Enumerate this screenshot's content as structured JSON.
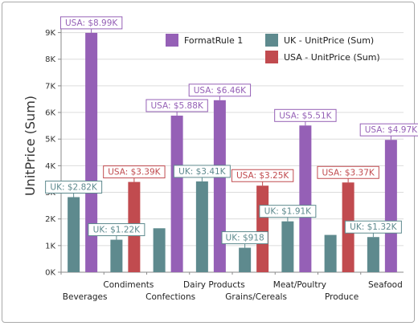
{
  "colors": {
    "uk": "#5e8a8e",
    "usa": "#c14b4f",
    "format_rule": "#9560b6",
    "grid": "#dcdcdc",
    "axis": "#8a8a8a"
  },
  "chart_data": {
    "type": "bar",
    "title": "",
    "xlabel": "",
    "ylabel": "UnitPrice (Sum)",
    "ylim": [
      0,
      9500
    ],
    "yticks": [
      0,
      1000,
      2000,
      3000,
      4000,
      5000,
      6000,
      7000,
      8000,
      9000
    ],
    "ytick_labels": [
      "0K",
      "1K",
      "2K",
      "3K",
      "4K",
      "5K",
      "6K",
      "7K",
      "8K",
      "9K"
    ],
    "grid": true,
    "legend_position": "top-right",
    "categories": [
      "Beverages",
      "Condiments",
      "Confections",
      "Dairy Products",
      "Grains/Cereals",
      "Meat/Poultry",
      "Produce",
      "Seafood"
    ],
    "legend": [
      {
        "key": "format_rule",
        "label": "FormatRule 1"
      },
      {
        "key": "uk",
        "label": "UK - UnitPrice (Sum)"
      },
      {
        "key": "usa",
        "label": "USA - UnitPrice (Sum)"
      }
    ],
    "series": [
      {
        "name": "UK - UnitPrice (Sum)",
        "values": [
          2820,
          1220,
          1650,
          3410,
          918,
          1910,
          1400,
          1320
        ],
        "labels": [
          "UK: $2.82K",
          "UK: $1.22K",
          null,
          "UK: $3.41K",
          "UK: $918",
          "UK: $1.91K",
          null,
          "UK: $1.32K"
        ]
      },
      {
        "name": "USA - UnitPrice (Sum)",
        "values": [
          8990,
          3390,
          5880,
          6460,
          3250,
          5510,
          3370,
          4970
        ],
        "labels": [
          "USA: $8.99K",
          "USA: $3.39K",
          "USA: $5.88K",
          "USA: $6.46K",
          "USA: $3.25K",
          "USA: $5.51K",
          "USA: $3.37K",
          "USA: $4.97K"
        ],
        "format_rule_applied": [
          true,
          false,
          true,
          true,
          false,
          true,
          false,
          true
        ]
      }
    ]
  }
}
